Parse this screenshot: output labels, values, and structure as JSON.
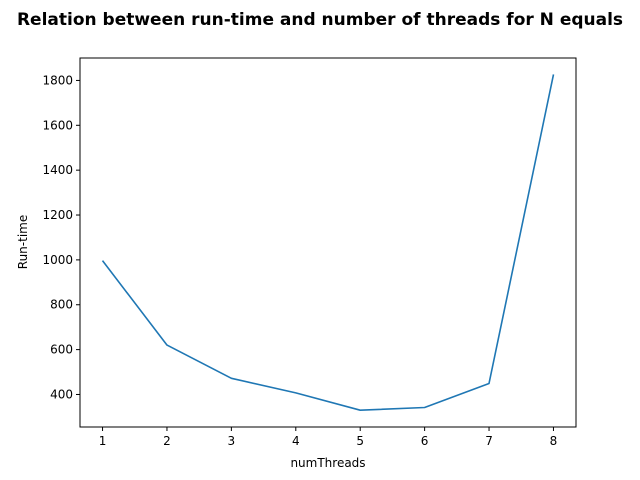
{
  "chart_data": {
    "type": "line",
    "title": "Relation between run-time and number of threads for N equals",
    "xlabel": "numThreads",
    "ylabel": "Run-time",
    "x": [
      1,
      2,
      3,
      4,
      5,
      6,
      7,
      8
    ],
    "series": [
      {
        "values": [
          997,
          620,
          472,
          407,
          330,
          342,
          449,
          1827
        ],
        "color": "#1f77b4"
      }
    ],
    "xlim": [
      0.65,
      8.35
    ],
    "ylim": [
      255,
      1900
    ],
    "xticks": [
      1,
      2,
      3,
      4,
      5,
      6,
      7,
      8
    ],
    "yticks": [
      400,
      600,
      800,
      1000,
      1200,
      1400,
      1600,
      1800
    ],
    "grid": false
  }
}
